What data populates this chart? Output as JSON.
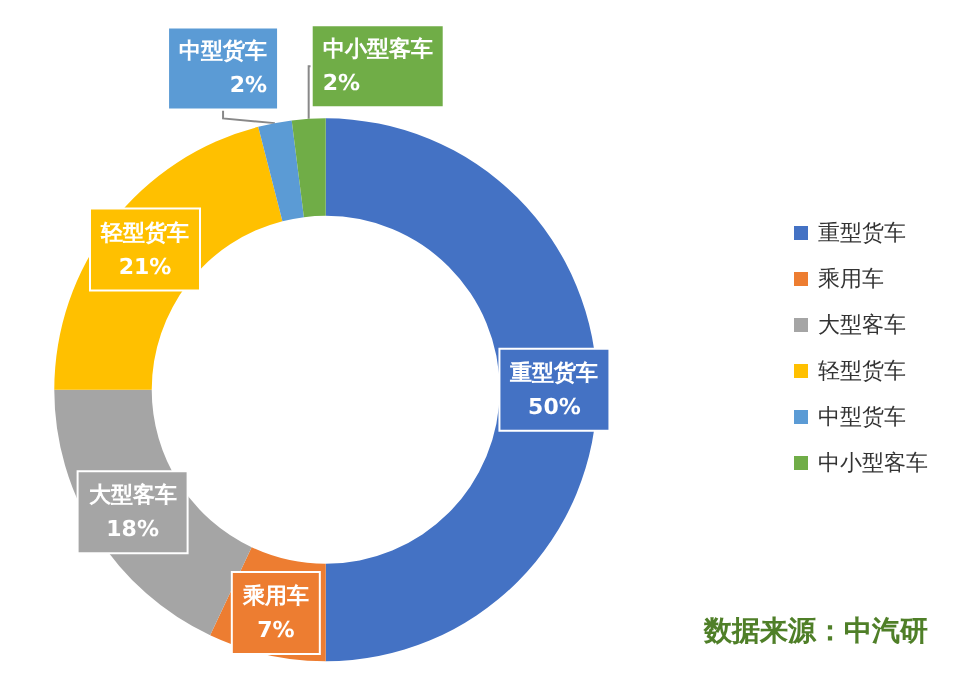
{
  "chart_data": {
    "type": "donut",
    "categories": [
      "重型货车",
      "乘用车",
      "大型客车",
      "轻型货车",
      "中型货车",
      "中小型客车"
    ],
    "values": [
      50,
      7,
      18,
      21,
      2,
      2
    ],
    "value_labels": [
      "50%",
      "7%",
      "18%",
      "21%",
      "2%",
      "2%"
    ],
    "colors": [
      "#4472c4",
      "#ed7d31",
      "#a5a5a5",
      "#ffc000",
      "#5b9bd5",
      "#70ad47"
    ],
    "legend": "right",
    "annotations": [
      "数据来源：中汽研"
    ]
  }
}
